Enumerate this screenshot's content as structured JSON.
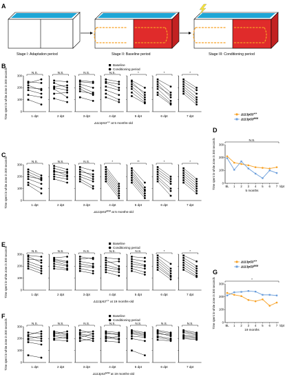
{
  "figure": {
    "panel_a": {
      "letter": "A",
      "stages": [
        "Stage I: Adaptation period",
        "Stage II: Baseline period",
        "Stage III: Conditioning period"
      ]
    },
    "dpt_labels": [
      "1 dpt",
      "2 dpt",
      "3 dpt",
      "4 dpt",
      "5 dpt",
      "6 dpt",
      "7 dpt"
    ],
    "y_label": "Time spent in white zone in 300 seconds",
    "yticks": [
      "0",
      "100",
      "200",
      "300"
    ],
    "legend_labels": [
      "Baseline",
      "Conditioning period"
    ],
    "panels": [
      {
        "letter": "B",
        "caption_a": "Δ113p53",
        "caption_b": "+/+",
        "caption_c": " at 5 months-old",
        "sig": [
          "N.S.",
          "N.S.",
          "N.S.",
          "N.S.",
          "*",
          "*",
          "*"
        ],
        "show_legend": true
      },
      {
        "letter": "C",
        "caption_a": "Δ113p53",
        "caption_b": "M/M",
        "caption_c": " at 5 months-old",
        "sig": [
          "N.S.",
          "N.S.",
          "N.S.",
          "*",
          "**",
          "*",
          "*"
        ],
        "show_legend": false
      },
      {
        "letter": "E",
        "caption_a": "Δ113p53",
        "caption_b": "+/+",
        "caption_c": " at 19 months-old",
        "sig": [
          "N.S.",
          "N.S.",
          "N.S.",
          "N.S.",
          "N.S.",
          "*",
          "*"
        ],
        "show_legend": true
      },
      {
        "letter": "F",
        "caption_a": "Δ113p53",
        "caption_b": "M/M",
        "caption_c": " at 19 months-old",
        "sig": [
          "N.S.",
          "N.S.",
          "N.S.",
          "N.S.",
          "N.S.",
          "N.S.",
          "N.S."
        ],
        "show_legend": true
      }
    ],
    "line_panels": [
      {
        "letter": "D",
        "xlabel": "5 months",
        "sig": "N.S."
      },
      {
        "letter": "G",
        "xlabel": "19 months",
        "sig": "*"
      }
    ]
  },
  "colors": {
    "orange": "#f7a125",
    "blue": "#6b9edb",
    "red": "#e02b2b",
    "cyan": "#2aa0d8",
    "arrow": "#f6e23a"
  },
  "chart_data": [
    {
      "type": "line",
      "panel": "D",
      "x": [
        "BL",
        "1",
        "2",
        "3",
        "4",
        "5",
        "6",
        "7"
      ],
      "xlabel": "5 months",
      "x_unit": "/dpt",
      "ylabel": "Time spent in white zone in 300 seconds",
      "ylim": [
        0,
        300
      ],
      "yticks": [
        0,
        100,
        200,
        300
      ],
      "legend_position": "top-right",
      "series": [
        {
          "name": "Δ113p53+/+",
          "color": "#f7a125",
          "values": [
            210,
            160,
            150,
            140,
            125,
            120,
            115,
            125
          ]
        },
        {
          "name": "Δ113p53M/M",
          "color": "#6b9edb",
          "values": [
            195,
            105,
            170,
            115,
            75,
            40,
            100,
            80
          ]
        }
      ],
      "significance": "N.S."
    },
    {
      "type": "line",
      "panel": "G",
      "x": [
        "BL",
        "1",
        "2",
        "3",
        "4",
        "5",
        "6",
        "7"
      ],
      "xlabel": "19 months",
      "x_unit": "/dpt",
      "ylabel": "Time spent in white zone in 300 seconds",
      "ylim": [
        0,
        300
      ],
      "yticks": [
        0,
        100,
        200,
        300
      ],
      "legend_position": "top-right",
      "series": [
        {
          "name": "Δ113p53+/+",
          "color": "#f7a125",
          "values": [
            230,
            215,
            205,
            175,
            165,
            180,
            130,
            155
          ]
        },
        {
          "name": "Δ113p53M/M",
          "color": "#6b9edb",
          "values": [
            210,
            235,
            238,
            245,
            240,
            215,
            215,
            210
          ]
        }
      ],
      "significance": "*"
    },
    {
      "type": "scatter",
      "panel": "B",
      "categories": [
        "1 dpt",
        "2 dpt",
        "3 dpt",
        "4 dpt",
        "5 dpt",
        "6 dpt",
        "7 dpt"
      ],
      "ylim": [
        0,
        300
      ],
      "pairs": [
        [
          [
            250,
            240
          ],
          [
            240,
            270
          ],
          [
            220,
            180
          ],
          [
            200,
            190
          ],
          [
            180,
            150
          ],
          [
            140,
            120
          ],
          [
            100,
            60
          ]
        ],
        [
          [
            260,
            250
          ],
          [
            240,
            200
          ],
          [
            210,
            220
          ],
          [
            200,
            180
          ],
          [
            190,
            120
          ],
          [
            150,
            160
          ],
          [
            110,
            80
          ]
        ],
        [
          [
            260,
            250
          ],
          [
            250,
            240
          ],
          [
            230,
            200
          ],
          [
            210,
            160
          ],
          [
            190,
            140
          ],
          [
            170,
            150
          ],
          [
            120,
            90
          ]
        ],
        [
          [
            270,
            250
          ],
          [
            250,
            230
          ],
          [
            240,
            200
          ],
          [
            210,
            180
          ],
          [
            180,
            140
          ],
          [
            150,
            100
          ],
          [
            120,
            80
          ]
        ],
        [
          [
            260,
            200
          ],
          [
            250,
            140
          ],
          [
            230,
            160
          ],
          [
            210,
            120
          ],
          [
            190,
            100
          ],
          [
            160,
            80
          ],
          [
            130,
            70
          ]
        ],
        [
          [
            270,
            210
          ],
          [
            250,
            160
          ],
          [
            230,
            120
          ],
          [
            210,
            140
          ],
          [
            190,
            90
          ],
          [
            160,
            70
          ],
          [
            140,
            60
          ]
        ],
        [
          [
            270,
            200
          ],
          [
            250,
            180
          ],
          [
            230,
            150
          ],
          [
            210,
            120
          ],
          [
            190,
            100
          ],
          [
            170,
            80
          ],
          [
            150,
            60
          ]
        ]
      ]
    },
    {
      "type": "scatter",
      "panel": "C",
      "categories": [
        "1 dpt",
        "2 dpt",
        "3 dpt",
        "4 dpt",
        "5 dpt",
        "6 dpt",
        "7 dpt"
      ],
      "ylim": [
        0,
        300
      ],
      "pairs": [
        [
          [
            260,
            210
          ],
          [
            240,
            190
          ],
          [
            220,
            170
          ],
          [
            200,
            180
          ],
          [
            180,
            140
          ],
          [
            150,
            100
          ],
          [
            130,
            60
          ]
        ],
        [
          [
            290,
            260
          ],
          [
            270,
            240
          ],
          [
            250,
            210
          ],
          [
            240,
            230
          ],
          [
            220,
            200
          ],
          [
            200,
            180
          ],
          [
            180,
            150
          ]
        ],
        [
          [
            280,
            250
          ],
          [
            260,
            200
          ],
          [
            240,
            220
          ],
          [
            220,
            180
          ],
          [
            200,
            160
          ],
          [
            180,
            120
          ],
          [
            160,
            100
          ]
        ],
        [
          [
            280,
            140
          ],
          [
            260,
            120
          ],
          [
            240,
            100
          ],
          [
            220,
            80
          ],
          [
            200,
            60
          ],
          [
            180,
            40
          ],
          [
            160,
            20
          ]
        ],
        [
          [
            270,
            150
          ],
          [
            250,
            110
          ],
          [
            230,
            90
          ],
          [
            210,
            80
          ],
          [
            190,
            60
          ],
          [
            170,
            40
          ],
          [
            150,
            20
          ]
        ],
        [
          [
            280,
            200
          ],
          [
            260,
            180
          ],
          [
            240,
            160
          ],
          [
            220,
            140
          ],
          [
            200,
            100
          ],
          [
            180,
            80
          ],
          [
            160,
            40
          ]
        ],
        [
          [
            270,
            180
          ],
          [
            250,
            160
          ],
          [
            230,
            140
          ],
          [
            210,
            120
          ],
          [
            190,
            100
          ],
          [
            170,
            80
          ],
          [
            150,
            60
          ]
        ]
      ]
    },
    {
      "type": "scatter",
      "panel": "E",
      "categories": [
        "1 dpt",
        "2 dpt",
        "3 dpt",
        "4 dpt",
        "5 dpt",
        "6 dpt",
        "7 dpt"
      ],
      "ylim": [
        0,
        300
      ],
      "pairs": [
        [
          [
            290,
            280
          ],
          [
            280,
            230
          ],
          [
            260,
            250
          ],
          [
            240,
            200
          ],
          [
            220,
            180
          ],
          [
            200,
            160
          ],
          [
            180,
            140
          ]
        ],
        [
          [
            270,
            280
          ],
          [
            260,
            240
          ],
          [
            250,
            230
          ],
          [
            240,
            210
          ],
          [
            220,
            200
          ],
          [
            200,
            180
          ],
          [
            180,
            170
          ]
        ],
        [
          [
            280,
            260
          ],
          [
            260,
            270
          ],
          [
            240,
            220
          ],
          [
            220,
            200
          ],
          [
            200,
            190
          ],
          [
            180,
            160
          ],
          [
            160,
            140
          ]
        ],
        [
          [
            270,
            260
          ],
          [
            250,
            200
          ],
          [
            230,
            240
          ],
          [
            210,
            180
          ],
          [
            190,
            170
          ],
          [
            170,
            150
          ],
          [
            150,
            120
          ]
        ],
        [
          [
            280,
            270
          ],
          [
            260,
            240
          ],
          [
            240,
            210
          ],
          [
            220,
            200
          ],
          [
            200,
            180
          ],
          [
            180,
            150
          ],
          [
            160,
            130
          ]
        ],
        [
          [
            290,
            220
          ],
          [
            270,
            180
          ],
          [
            250,
            160
          ],
          [
            230,
            140
          ],
          [
            210,
            120
          ],
          [
            190,
            110
          ],
          [
            170,
            90
          ]
        ],
        [
          [
            290,
            240
          ],
          [
            270,
            200
          ],
          [
            250,
            180
          ],
          [
            230,
            160
          ],
          [
            210,
            140
          ],
          [
            190,
            120
          ],
          [
            170,
            110
          ]
        ]
      ]
    },
    {
      "type": "scatter",
      "panel": "F",
      "categories": [
        "1 dpt",
        "2 dpt",
        "3 dpt",
        "4 dpt",
        "5 dpt",
        "6 dpt",
        "7 dpt"
      ],
      "ylim": [
        0,
        300
      ],
      "pairs": [
        [
          [
            250,
            240
          ],
          [
            230,
            260
          ],
          [
            220,
            200
          ],
          [
            200,
            220
          ],
          [
            190,
            180
          ],
          [
            170,
            150
          ],
          [
            60,
            40
          ]
        ],
        [
          [
            260,
            240
          ],
          [
            250,
            230
          ],
          [
            240,
            260
          ],
          [
            230,
            220
          ],
          [
            220,
            200
          ],
          [
            200,
            210
          ],
          [
            190,
            180
          ]
        ],
        [
          [
            270,
            240
          ],
          [
            250,
            260
          ],
          [
            240,
            220
          ],
          [
            230,
            200
          ],
          [
            210,
            240
          ],
          [
            200,
            180
          ],
          [
            180,
            200
          ]
        ],
        [
          [
            260,
            250
          ],
          [
            250,
            230
          ],
          [
            240,
            240
          ],
          [
            220,
            200
          ],
          [
            210,
            190
          ],
          [
            200,
            220
          ],
          [
            180,
            170
          ]
        ],
        [
          [
            270,
            250
          ],
          [
            260,
            240
          ],
          [
            250,
            230
          ],
          [
            240,
            220
          ],
          [
            220,
            210
          ],
          [
            200,
            180
          ],
          [
            100,
            60
          ]
        ],
        [
          [
            270,
            250
          ],
          [
            260,
            240
          ],
          [
            250,
            220
          ],
          [
            240,
            230
          ],
          [
            220,
            200
          ],
          [
            210,
            190
          ],
          [
            190,
            180
          ]
        ],
        [
          [
            270,
            250
          ],
          [
            260,
            240
          ],
          [
            250,
            230
          ],
          [
            230,
            220
          ],
          [
            220,
            210
          ],
          [
            210,
            200
          ],
          [
            200,
            190
          ]
        ]
      ]
    }
  ]
}
